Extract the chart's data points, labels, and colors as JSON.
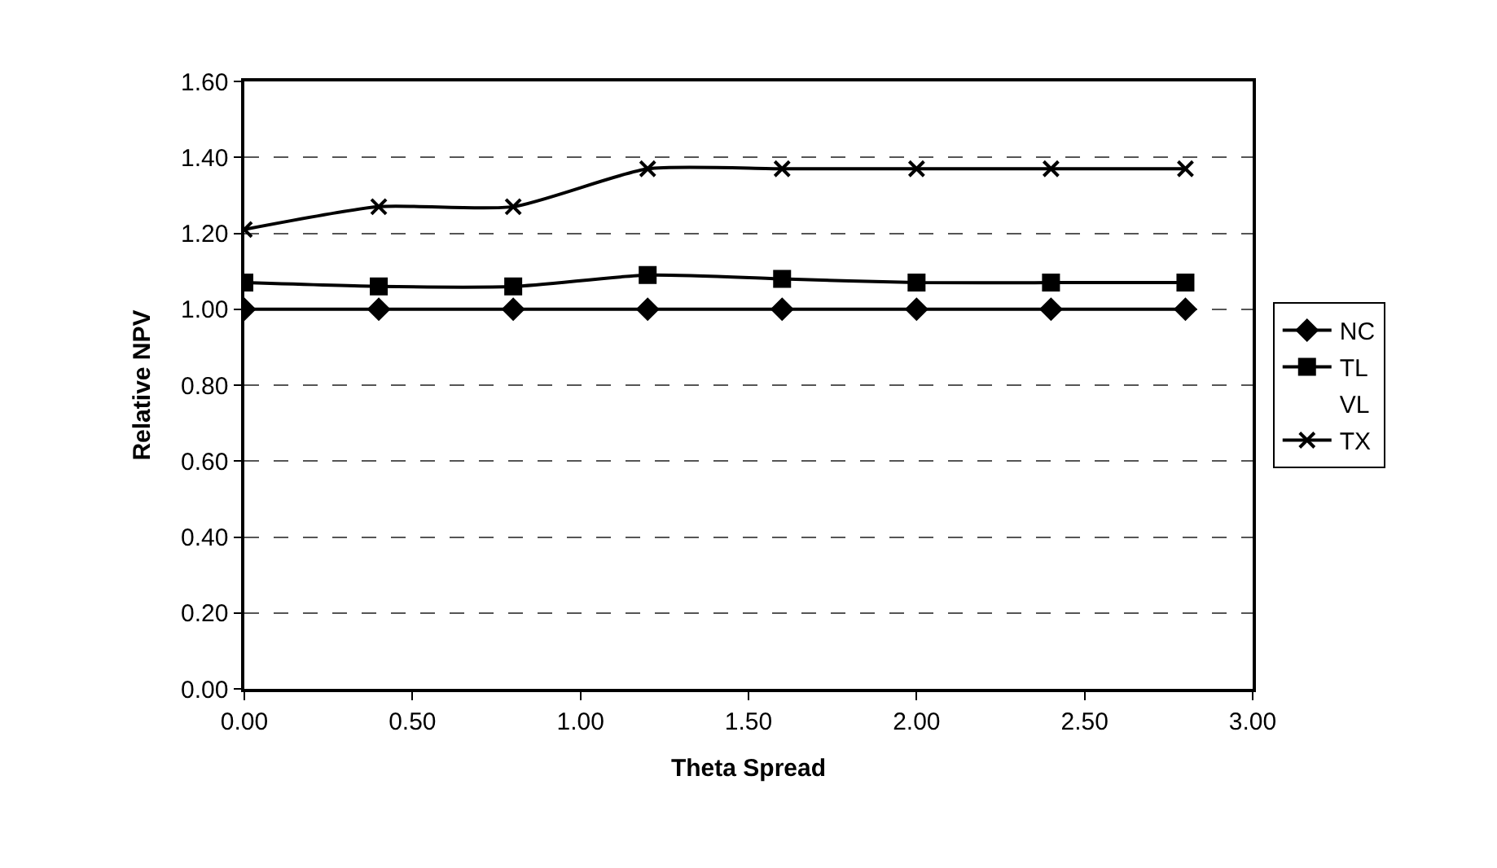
{
  "chart_data": {
    "type": "line",
    "xlabel": "Theta Spread",
    "ylabel": "Relative NPV",
    "x": [
      0.0,
      0.4,
      0.8,
      1.2,
      1.6,
      2.0,
      2.4,
      2.8
    ],
    "series": [
      {
        "name": "NC",
        "color": "#000000",
        "marker": "diamond",
        "values": [
          1.0,
          1.0,
          1.0,
          1.0,
          1.0,
          1.0,
          1.0,
          1.0
        ]
      },
      {
        "name": "TL",
        "color": "#000000",
        "marker": "square",
        "values": [
          1.07,
          1.06,
          1.06,
          1.09,
          1.08,
          1.07,
          1.07,
          1.07
        ]
      },
      {
        "name": "VL",
        "marker": "none",
        "values": [
          null,
          null,
          null,
          null,
          null,
          null,
          null,
          null
        ]
      },
      {
        "name": "TX",
        "color": "#000000",
        "marker": "cross",
        "values": [
          1.21,
          1.27,
          1.27,
          1.37,
          1.37,
          1.37,
          1.37,
          1.37
        ]
      }
    ],
    "xlim": [
      0,
      3
    ],
    "xticks": [
      {
        "value": 0,
        "label": "0.00"
      },
      {
        "value": 0.5,
        "label": "0.50"
      },
      {
        "value": 1,
        "label": "1.00"
      },
      {
        "value": 1.5,
        "label": "1.50"
      },
      {
        "value": 2,
        "label": "2.00"
      },
      {
        "value": 2.5,
        "label": "2.50"
      },
      {
        "value": 3,
        "label": "3.00"
      }
    ],
    "ylim": [
      0,
      1.6
    ],
    "yticks": [
      {
        "value": 0,
        "label": "0.00"
      },
      {
        "value": 0.2,
        "label": "0.20"
      },
      {
        "value": 0.4,
        "label": "0.40"
      },
      {
        "value": 0.6,
        "label": "0.60"
      },
      {
        "value": 0.8,
        "label": "0.80"
      },
      {
        "value": 1.0,
        "label": "1.00"
      },
      {
        "value": 1.2,
        "label": "1.20"
      },
      {
        "value": 1.4,
        "label": "1.40"
      },
      {
        "value": 1.6,
        "label": "1.60"
      }
    ],
    "grid": "y",
    "legend": "right",
    "line_style": "solid"
  }
}
